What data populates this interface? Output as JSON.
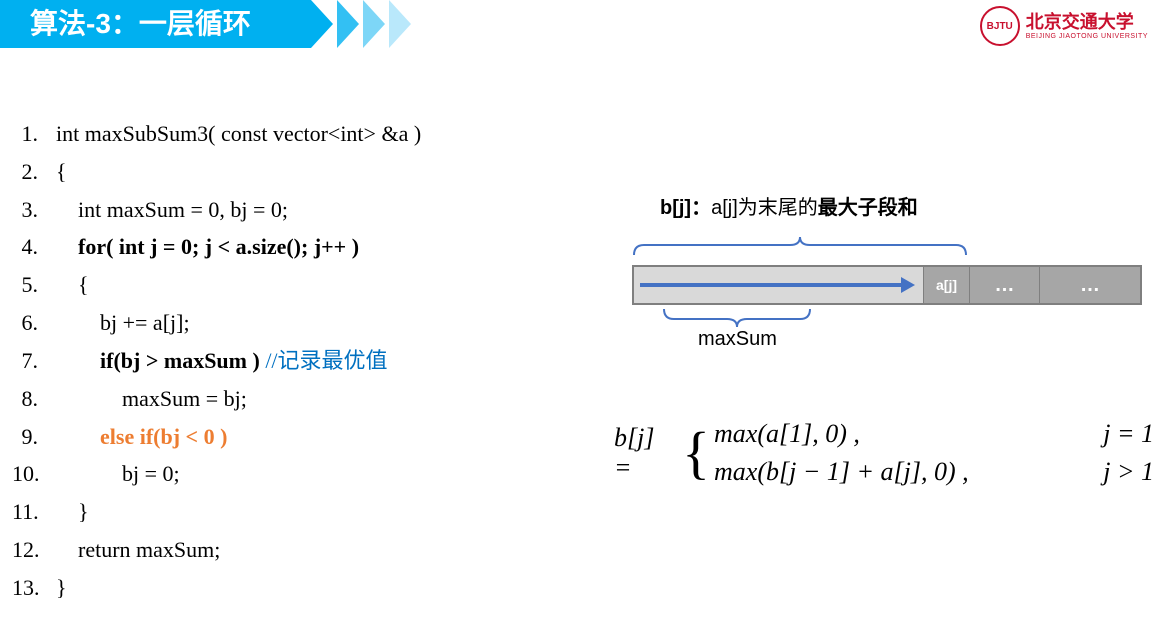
{
  "header": {
    "title": "算法-3：一层循环",
    "bg_color": "#00b0f0",
    "text_color": "#ffffff"
  },
  "logo": {
    "name_cn": "北京交通大学",
    "name_en": "BEIJING JIAOTONG UNIVERSITY",
    "color": "#c8102e",
    "mark": "BJTU"
  },
  "code": {
    "lines": [
      {
        "n": "1.",
        "indent": 0,
        "segs": [
          {
            "t": "int maxSubSum3( const vector<int> &a )"
          }
        ]
      },
      {
        "n": "2.",
        "indent": 0,
        "segs": [
          {
            "t": "{"
          }
        ]
      },
      {
        "n": "3.",
        "indent": 1,
        "segs": [
          {
            "t": "int maxSum = 0, bj = 0;"
          }
        ]
      },
      {
        "n": "4.",
        "indent": 1,
        "segs": [
          {
            "t": "for( int j = 0; j < a.size(); j++ )",
            "cls": "bold"
          }
        ]
      },
      {
        "n": "5.",
        "indent": 1,
        "segs": [
          {
            "t": "{"
          }
        ]
      },
      {
        "n": "6.",
        "indent": 2,
        "segs": [
          {
            "t": "bj += a[j];"
          }
        ]
      },
      {
        "n": "7.",
        "indent": 2,
        "segs": [
          {
            "t": "if(bj > maxSum ) ",
            "cls": "bold"
          },
          {
            "t": "//记录最优值",
            "cls": "blue"
          }
        ]
      },
      {
        "n": "8.",
        "indent": 3,
        "segs": [
          {
            "t": "maxSum = bj;"
          }
        ]
      },
      {
        "n": "9.",
        "indent": 2,
        "segs": [
          {
            "t": "else if(bj < 0 )",
            "cls": "orange"
          }
        ]
      },
      {
        "n": "10.",
        "indent": 3,
        "segs": [
          {
            "t": "bj = 0;"
          }
        ]
      },
      {
        "n": "11.",
        "indent": 1,
        "segs": [
          {
            "t": "}"
          }
        ]
      },
      {
        "n": "12.",
        "indent": 1,
        "segs": [
          {
            "t": "return maxSum;"
          }
        ]
      },
      {
        "n": "13.",
        "indent": 0,
        "segs": [
          {
            "t": "}"
          }
        ]
      }
    ],
    "indent_unit": "    ",
    "colors": {
      "blue": "#0070c0",
      "orange": "#ed7d31"
    }
  },
  "diagram": {
    "label_prefix_bold": "b[j]：",
    "label_rest_a": "a[j]为末尾的",
    "label_rest_b": "最大子段和",
    "aj_text": "a[j]",
    "dots": "…",
    "maxsum_label": "maxSum",
    "colors": {
      "seg_light": "#d9d9d9",
      "seg_dark": "#a6a6a6",
      "border": "#7f7f7f",
      "arrow": "#4472c4",
      "bracket": "#4472c4"
    }
  },
  "formula": {
    "lhs": "b[j] = ",
    "case1_left": "max(a[1], 0) ,",
    "case1_right": "j = 1",
    "case2_left": "max(b[j − 1] + a[j], 0) ,",
    "case2_right": "j > 1"
  }
}
